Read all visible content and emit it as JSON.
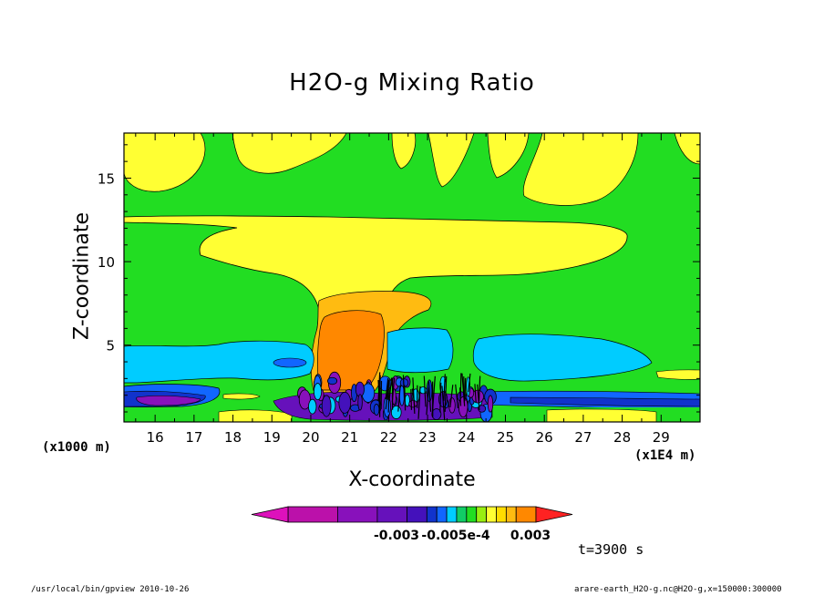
{
  "chart_data": {
    "type": "heatmap",
    "title": "H2O-g Mixing Ratio",
    "xlabel": "X-coordinate",
    "ylabel": "Z-coordinate",
    "x_unit": "(x1000 m)",
    "x_scale": "(x1E4 m)",
    "xlim": [
      15.2,
      30.0
    ],
    "ylim": [
      0.4,
      17.7
    ],
    "x_ticks": [
      16,
      17,
      18,
      19,
      20,
      21,
      22,
      23,
      24,
      25,
      26,
      27,
      28,
      29
    ],
    "y_ticks": [
      5,
      10,
      15
    ],
    "colorbar": {
      "colors": [
        "#dd11bb",
        "#bb11aa",
        "#8811bb",
        "#6611bb",
        "#4411bb",
        "#1133cc",
        "#1166ff",
        "#00ccff",
        "#11cc66",
        "#22dd22",
        "#99ee11",
        "#ffff33",
        "#ffdd00",
        "#ffbb11",
        "#ff8800",
        "#ff2222"
      ],
      "labels": [
        "-0.003",
        "-0.005e-4",
        "0.003"
      ]
    },
    "time_label": "t=3900 s"
  },
  "footer": {
    "left": "/usr/local/bin/gpview  2010-10-26",
    "right": "arare-earth_H2O-g.nc@H2O-g,x=150000:300000"
  }
}
